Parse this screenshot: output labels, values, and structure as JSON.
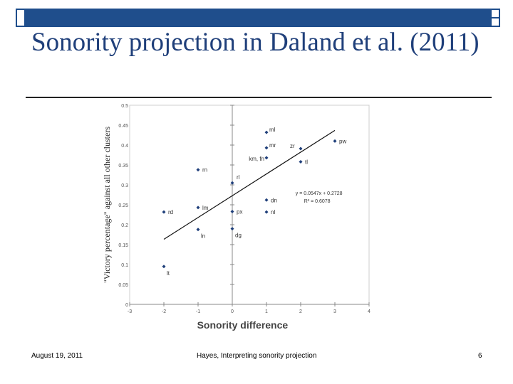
{
  "slide": {
    "title": "Sonority projection in Daland et al. (2011)",
    "footer_date": "August 19, 2011",
    "footer_center": "Hayes, Interpreting sonority projection",
    "page_number": "6"
  },
  "colors": {
    "accent": "#1f4e8c",
    "title": "#1f3f7a",
    "points": "#1f3f7a"
  },
  "chart_data": {
    "type": "scatter",
    "xlabel": "Sonority difference",
    "ylabel": "\"Victory percentage\" against all other clusters",
    "xlim": [
      -3,
      4
    ],
    "ylim": [
      0,
      0.5
    ],
    "xticks": [
      "-3",
      "-2",
      "-1",
      "0",
      "1",
      "2",
      "3",
      "4"
    ],
    "yticks": [
      "0",
      "0.05",
      "0.1",
      "0.15",
      "0.2",
      "0.25",
      "0.3",
      "0.35",
      "0.4",
      "0.45",
      "0.5"
    ],
    "grid": false,
    "points": [
      {
        "label": "lt",
        "x": -2,
        "y": 0.095
      },
      {
        "label": "rd",
        "x": -2,
        "y": 0.232
      },
      {
        "label": "rn",
        "x": -1,
        "y": 0.338
      },
      {
        "label": "lm",
        "x": -1,
        "y": 0.243
      },
      {
        "label": "ln",
        "x": -1,
        "y": 0.188
      },
      {
        "label": "rl",
        "x": 0,
        "y": 0.305
      },
      {
        "label": "px",
        "x": 0,
        "y": 0.233
      },
      {
        "label": "dg",
        "x": 0,
        "y": 0.19
      },
      {
        "label": "ml",
        "x": 1,
        "y": 0.432
      },
      {
        "label": "mr",
        "x": 1,
        "y": 0.393
      },
      {
        "label": "km, fn",
        "x": 1,
        "y": 0.368
      },
      {
        "label": "dn",
        "x": 1,
        "y": 0.262
      },
      {
        "label": "nl",
        "x": 1,
        "y": 0.232
      },
      {
        "label": "zr",
        "x": 2,
        "y": 0.391
      },
      {
        "label": "tl",
        "x": 2,
        "y": 0.358
      },
      {
        "label": "pw",
        "x": 3,
        "y": 0.41
      }
    ],
    "trendline": {
      "slope": 0.0547,
      "intercept": 0.2728,
      "x_from": -2,
      "x_to": 3
    },
    "equation": "y = 0.0547x + 0.2728",
    "r_squared": "R² = 0.6078"
  }
}
